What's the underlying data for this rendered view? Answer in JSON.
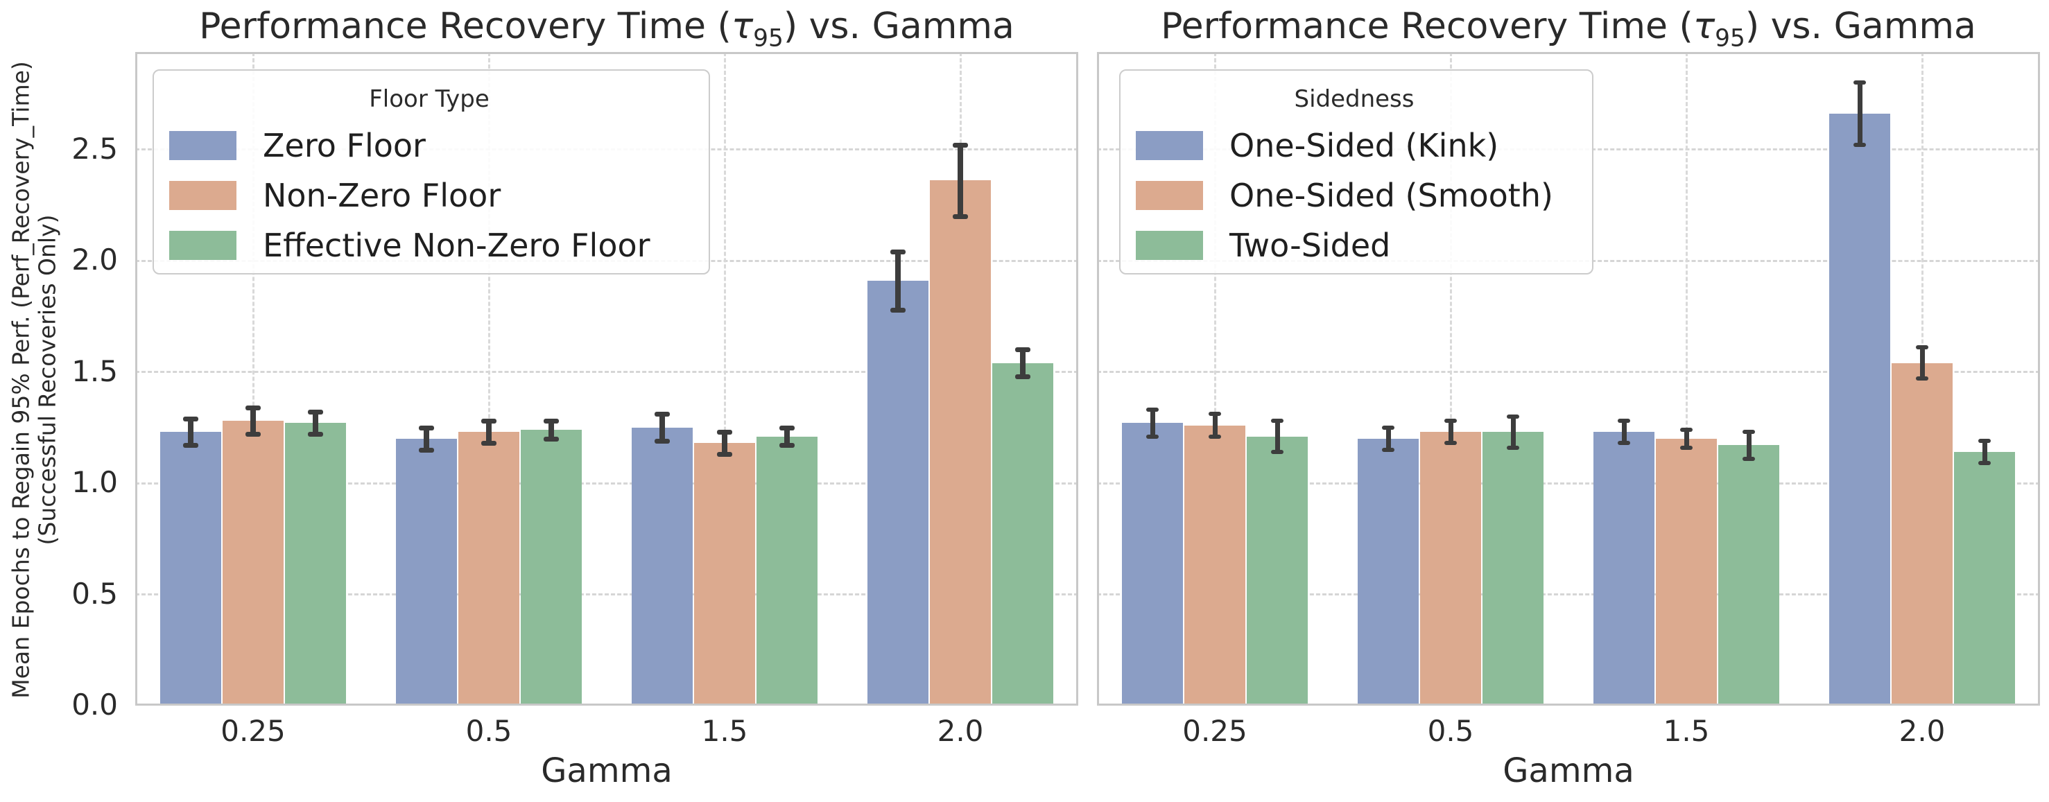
{
  "figure": {
    "background": "#ffffff",
    "text_color": "#2a2a2a",
    "grid_color": "#d6d6d6",
    "spine_color": "#c8c8c8",
    "error_bar_color": "#3d3d3d"
  },
  "chart_data": [
    {
      "type": "bar",
      "title": {
        "pre": "Performance Recovery Time (",
        "tau": "τ",
        "sub": "95",
        "post": ") vs. Gamma"
      },
      "xlabel": "Gamma",
      "ylabel_lines": [
        "Mean Epochs to Regain 95% Perf. (Perf_Recovery_Time)",
        "(Successful Recoveries Only)"
      ],
      "legend_title": "Floor Type",
      "legend_position": "upper left",
      "grid": true,
      "categories": [
        "0.25",
        "0.5",
        "1.5",
        "2.0"
      ],
      "yticks": {
        "labels": [
          "0.0",
          "0.5",
          "1.0",
          "1.5",
          "2.0",
          "2.5"
        ],
        "values": [
          0.0,
          0.5,
          1.0,
          1.5,
          2.0,
          2.5
        ]
      },
      "ylim": [
        0,
        2.94
      ],
      "error_style": "caps",
      "series": [
        {
          "name": "Zero Floor",
          "color": "#8b9dc4",
          "values": [
            1.23,
            1.2,
            1.25,
            1.91
          ],
          "errors": [
            0.06,
            0.05,
            0.06,
            0.13
          ]
        },
        {
          "name": "Non-Zero Floor",
          "color": "#dcaa8f",
          "values": [
            1.28,
            1.23,
            1.18,
            2.36
          ],
          "errors": [
            0.06,
            0.05,
            0.05,
            0.16
          ]
        },
        {
          "name": "Effective Non-Zero Floor",
          "color": "#8dbc99",
          "values": [
            1.27,
            1.24,
            1.21,
            1.54
          ],
          "errors": [
            0.05,
            0.04,
            0.04,
            0.06
          ]
        }
      ]
    },
    {
      "type": "bar",
      "title": {
        "pre": "Performance Recovery Time (",
        "tau": "τ",
        "sub": "95",
        "post": ") vs. Gamma"
      },
      "xlabel": "Gamma",
      "legend_title": "Sidedness",
      "legend_position": "upper left",
      "grid": true,
      "categories": [
        "0.25",
        "0.5",
        "1.5",
        "2.0"
      ],
      "yticks": {
        "labels": [],
        "values": []
      },
      "ylim": [
        0,
        2.94
      ],
      "error_style": "caps",
      "series": [
        {
          "name": "One-Sided (Kink)",
          "color": "#8b9dc4",
          "values": [
            1.27,
            1.2,
            1.23,
            2.66
          ],
          "errors": [
            0.06,
            0.05,
            0.05,
            0.14
          ]
        },
        {
          "name": "One-Sided (Smooth)",
          "color": "#dcaa8f",
          "values": [
            1.26,
            1.23,
            1.2,
            1.54
          ],
          "errors": [
            0.05,
            0.05,
            0.04,
            0.07
          ]
        },
        {
          "name": "Two-Sided",
          "color": "#8dbc99",
          "values": [
            1.21,
            1.23,
            1.17,
            1.14
          ],
          "errors": [
            0.07,
            0.07,
            0.06,
            0.05
          ]
        }
      ]
    }
  ]
}
